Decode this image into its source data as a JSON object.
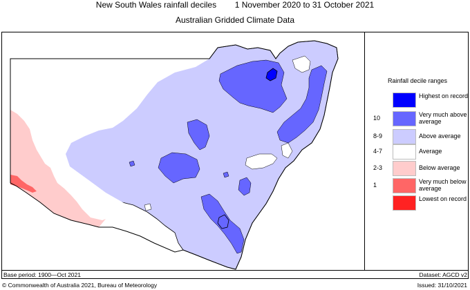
{
  "header": {
    "title": "New South Wales rainfall deciles        1 November 2020 to 31 October 2021",
    "subtitle": "Australian Gridded Climate Data"
  },
  "legend": {
    "title": "Rainfall decile ranges",
    "items": [
      {
        "range": "",
        "label": "Highest on record",
        "color": "#0000ff"
      },
      {
        "range": "10",
        "label": "Very much above average",
        "color": "#6666ff"
      },
      {
        "range": "8-9",
        "label": "Above average",
        "color": "#ccccff"
      },
      {
        "range": "4-7",
        "label": "Average",
        "color": "#ffffff"
      },
      {
        "range": "2-3",
        "label": "Below average",
        "color": "#ffcccc"
      },
      {
        "range": "1",
        "label": "Very much below average",
        "color": "#ff6666"
      },
      {
        "range": "",
        "label": "Lowest on record",
        "color": "#ff2222"
      }
    ]
  },
  "footer": {
    "base_period": "Base period: 1900—Oct 2021",
    "dataset": "Dataset: AGCD v2",
    "copyright": "© Commonwealth of Australia 2021, Bureau of Meteorology",
    "issued": "Issued: 31/10/2021"
  },
  "colors": {
    "highest": "#0000ff",
    "very_much_above": "#6666ff",
    "above": "#ccccff",
    "average": "#ffffff",
    "below": "#ffcccc",
    "very_much_below": "#ff6666",
    "outline": "#000000"
  }
}
